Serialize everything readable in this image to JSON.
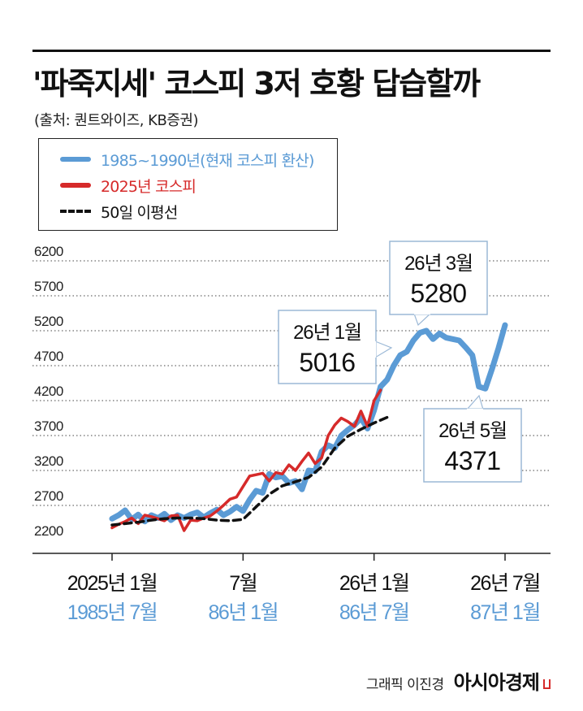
{
  "title": "'파죽지세' 코스피 3저 호황 답습할까",
  "source": "(출처: 퀀트와이즈, KB증권)",
  "legend": [
    {
      "label": "1985~1990년(현재 코스피 환산)",
      "color": "#5b9bd5",
      "style": "solid"
    },
    {
      "label": "2025년 코스피",
      "color": "#d62a2a",
      "style": "solid"
    },
    {
      "label": "50일 이평선",
      "color": "#111111",
      "style": "dashed"
    }
  ],
  "footer": {
    "credit": "그래픽 이진경",
    "brand": "아시아경제"
  },
  "chart_data": {
    "type": "line",
    "y_ticks": [
      "6200",
      "5700",
      "5200",
      "4700",
      "4200",
      "3700",
      "3200",
      "2700",
      "2200"
    ],
    "ylim": [
      2200,
      6200
    ],
    "xlim": [
      0,
      60
    ],
    "grid": true,
    "x_ticks": [
      {
        "x": 0,
        "top": "2025년 1월",
        "bottom": "1985년 7월"
      },
      {
        "x": 20,
        "top": "7월",
        "bottom": "86년 1월"
      },
      {
        "x": 40,
        "top": "26년 1월",
        "bottom": "86년 7월"
      },
      {
        "x": 60,
        "top": "26년 7월",
        "bottom": "87년 1월"
      }
    ],
    "series": [
      {
        "name": "1985~1990년(현재 코스피 환산)",
        "color": "#5b9bd5",
        "x": [
          0,
          1,
          2,
          3,
          4,
          5,
          6,
          7,
          8,
          9,
          10,
          11,
          12,
          13,
          14,
          15,
          16,
          17,
          18,
          19,
          20,
          21,
          22,
          23,
          24,
          25,
          26,
          27,
          28,
          29,
          30,
          31,
          32,
          33,
          34,
          35,
          36,
          37,
          38,
          39,
          40,
          41,
          42,
          43,
          44,
          45,
          46,
          47,
          48,
          49,
          50,
          51,
          52,
          53,
          54,
          55,
          56,
          57,
          58,
          59,
          60
        ],
        "values": [
          2510,
          2560,
          2630,
          2500,
          2570,
          2470,
          2560,
          2520,
          2580,
          2490,
          2560,
          2520,
          2570,
          2600,
          2530,
          2590,
          2640,
          2560,
          2610,
          2680,
          2620,
          2780,
          2910,
          2880,
          3150,
          3100,
          3120,
          3020,
          3050,
          2930,
          3200,
          3190,
          3470,
          3560,
          3520,
          3700,
          3780,
          3850,
          3950,
          3800,
          4060,
          4400,
          4500,
          4700,
          4850,
          4900,
          5060,
          5170,
          5200,
          5080,
          5160,
          5100,
          5080,
          5060,
          4960,
          4850,
          4400,
          4371,
          4650,
          4950,
          5280
        ]
      },
      {
        "name": "2025년 코스피",
        "color": "#d62a2a",
        "x": [
          0,
          1,
          2,
          3,
          4,
          5,
          6,
          7,
          8,
          9,
          10,
          11,
          12,
          13,
          14,
          15,
          16,
          17,
          18,
          19,
          20,
          21,
          22,
          23,
          24,
          25,
          26,
          27,
          28,
          29,
          30,
          31,
          32,
          33,
          34,
          35,
          36,
          37,
          38,
          39,
          40,
          41
        ],
        "values": [
          2380,
          2430,
          2470,
          2520,
          2440,
          2560,
          2540,
          2510,
          2480,
          2550,
          2560,
          2340,
          2490,
          2480,
          2520,
          2550,
          2620,
          2700,
          2790,
          2820,
          2970,
          3120,
          3140,
          3160,
          3050,
          3170,
          3150,
          3280,
          3200,
          3330,
          3450,
          3300,
          3380,
          3700,
          3850,
          3950,
          3900,
          3830,
          4050,
          3830,
          4200,
          4350
        ]
      },
      {
        "name": "50일 이평선",
        "color": "#111111",
        "x": [
          0,
          2,
          4,
          6,
          8,
          10,
          12,
          14,
          16,
          18,
          20,
          22,
          24,
          26,
          28,
          30,
          32,
          34,
          36,
          38,
          40,
          42
        ],
        "values": [
          2420,
          2440,
          2460,
          2490,
          2510,
          2520,
          2520,
          2510,
          2490,
          2480,
          2500,
          2680,
          2860,
          2980,
          3040,
          3100,
          3250,
          3520,
          3690,
          3790,
          3880,
          3960
        ]
      }
    ],
    "annotations": [
      {
        "label": "26년 1월",
        "value": "5016",
        "x": 40,
        "y": 4400
      },
      {
        "label": "26년 3월",
        "value": "5280",
        "x": 48,
        "y": 5200
      },
      {
        "label": "26년 5월",
        "value": "4371",
        "x": 57,
        "y": 4371
      }
    ]
  }
}
